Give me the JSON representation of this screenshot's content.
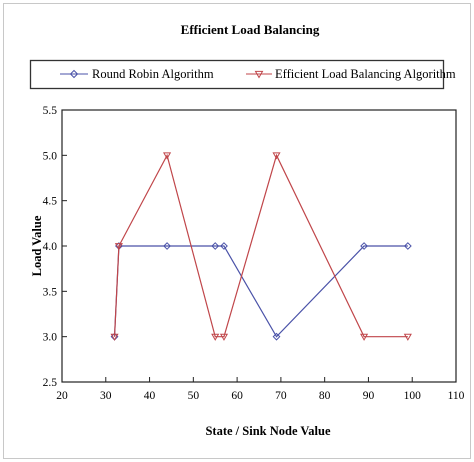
{
  "chart_data": {
    "type": "line",
    "title": "Efficient Load Balancing",
    "xlabel": "State / Sink Node Value",
    "ylabel": "Load Value",
    "xlim": [
      20,
      110
    ],
    "ylim": [
      2.5,
      5.5
    ],
    "xticks": [
      20,
      30,
      40,
      50,
      60,
      70,
      80,
      90,
      100,
      110
    ],
    "yticks": [
      2.5,
      3.0,
      3.5,
      4.0,
      4.5,
      5.0,
      5.5
    ],
    "ytick_labels": [
      "2.5",
      "3.0",
      "3.5",
      "4.0",
      "4.5",
      "5.0",
      "5.5"
    ],
    "legend_position": "top",
    "series": [
      {
        "name": "Round Robin Algorithm",
        "color": "#4a52a8",
        "marker": "diamond",
        "x": [
          32,
          33,
          44,
          55,
          57,
          69,
          89,
          99
        ],
        "y": [
          3.0,
          4.0,
          4.0,
          4.0,
          4.0,
          3.0,
          4.0,
          4.0
        ]
      },
      {
        "name": "Efficient Load Balancing Algorithm",
        "color": "#c0464a",
        "marker": "triangle-down",
        "x": [
          32,
          33,
          44,
          55,
          57,
          69,
          89,
          99
        ],
        "y": [
          3.0,
          4.0,
          5.0,
          3.0,
          3.0,
          5.0,
          3.0,
          3.0
        ]
      }
    ]
  }
}
